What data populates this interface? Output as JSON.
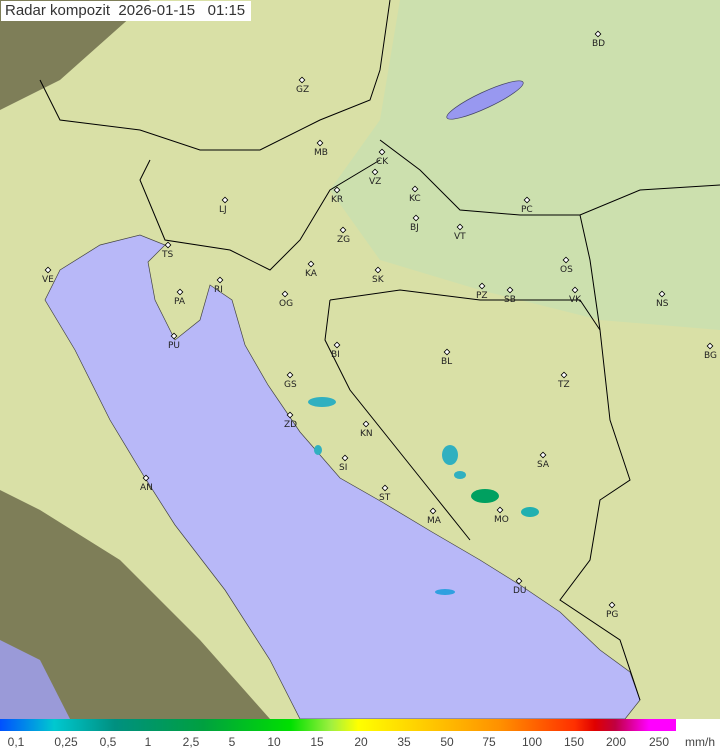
{
  "title": "Radar kompozit  2026-01-15   01:15",
  "legend": {
    "labels": [
      "0,1",
      "0,25",
      "0,5",
      "1",
      "2,5",
      "5",
      "10",
      "15",
      "20",
      "35",
      "50",
      "75",
      "100",
      "150",
      "200",
      "250"
    ],
    "unit": "mm/h"
  },
  "colors": {
    "land": "#d8e0a8",
    "sea": "#b8b8f8",
    "outside": "#8a8a60",
    "border": "#000000"
  },
  "cities": [
    "GZ",
    "BD",
    "MB",
    "CK",
    "VZ",
    "KR",
    "KC",
    "PC",
    "LJ",
    "ZG",
    "BJ",
    "VT",
    "TS",
    "VE",
    "RI",
    "KA",
    "SK",
    "OS",
    "PA",
    "OG",
    "PZ",
    "SB",
    "VK",
    "NS",
    "PU",
    "BI",
    "BL",
    "BG",
    "GS",
    "TZ",
    "ZD",
    "KN",
    "SA",
    "SI",
    "AN",
    "ST",
    "MA",
    "MO",
    "DU",
    "PG"
  ]
}
